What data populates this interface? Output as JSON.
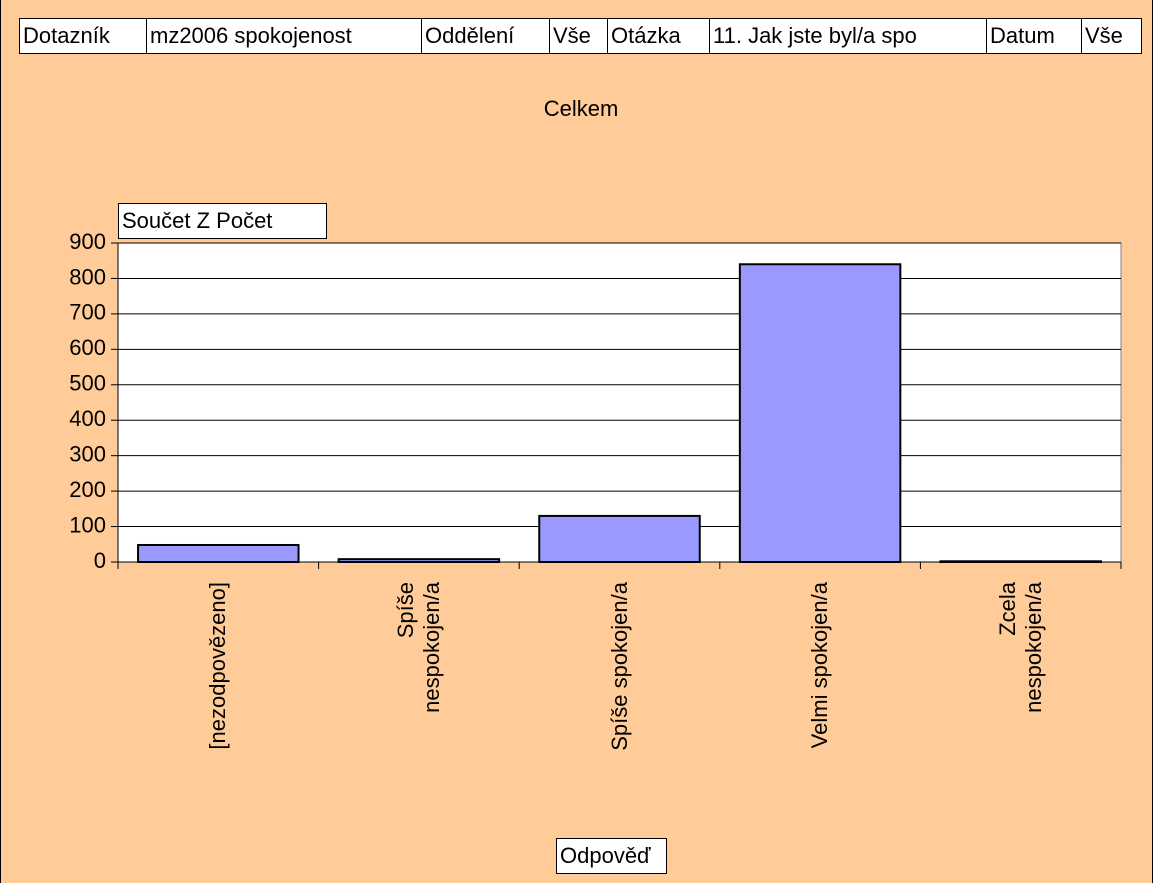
{
  "filters": [
    {
      "label": "Dotazník",
      "value": "mz2006 spokojenost"
    },
    {
      "label": "Oddělení",
      "value": "Vše"
    },
    {
      "label": "Otázka",
      "value": "11. Jak jste byl/a spo"
    },
    {
      "label": "Datum",
      "value": "Vše"
    }
  ],
  "chart_data": {
    "type": "bar",
    "title": "Celkem",
    "y_label": "Součet Z Počet",
    "x_label": "Odpověď",
    "categories": [
      "[nezodpovězeno]",
      "Spíše nespokojen/a",
      "Spíše spokojen/a",
      "Velmi spokojen/a",
      "Zcela nespokojen/a"
    ],
    "values": [
      48,
      8,
      130,
      840,
      2
    ],
    "color": "#9999ff",
    "ylim": [
      0,
      900
    ],
    "yticks": [
      0,
      100,
      200,
      300,
      400,
      500,
      600,
      700,
      800,
      900
    ],
    "grid": true
  }
}
